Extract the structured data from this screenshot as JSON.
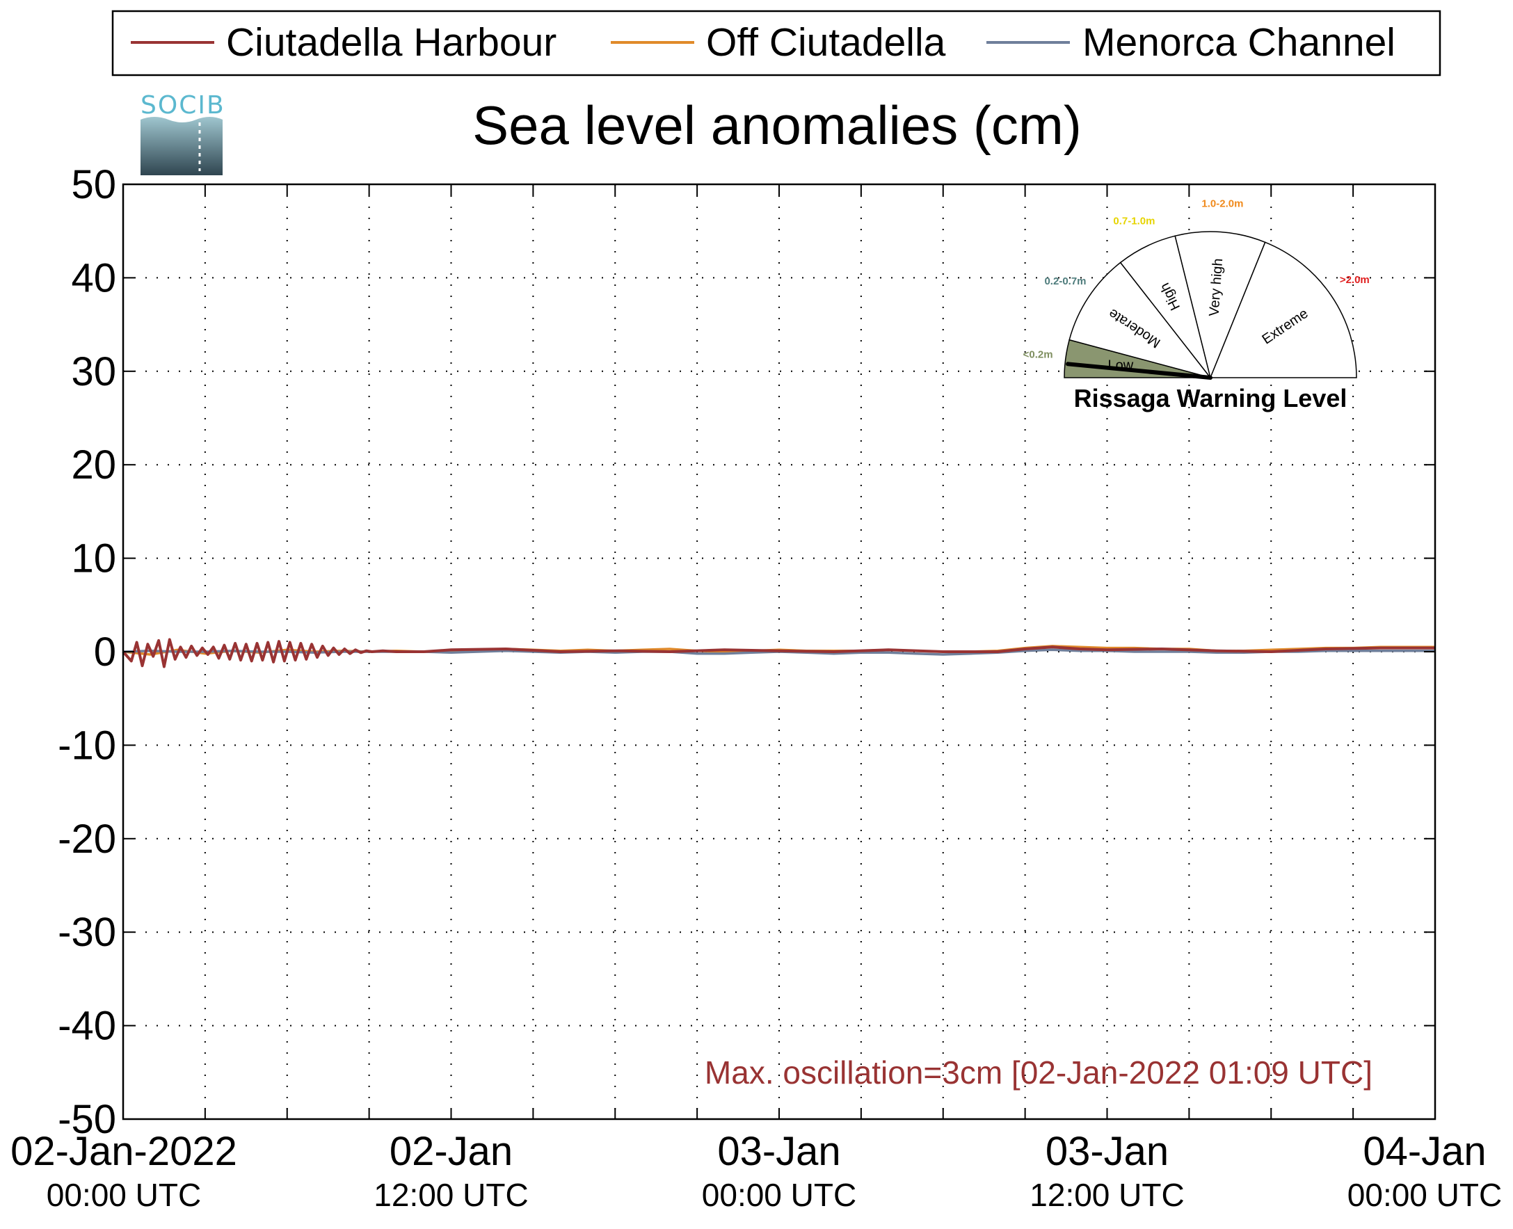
{
  "chart_data": {
    "type": "line",
    "title": "Sea level anomalies (cm)",
    "xlabel": "",
    "ylabel": "",
    "ylim": [
      -50,
      50
    ],
    "yticks": [
      50,
      40,
      30,
      20,
      10,
      0,
      -10,
      -20,
      -30,
      -40,
      -50
    ],
    "yticklabels": [
      "50",
      "40",
      "30",
      "20",
      "10",
      "0",
      "-10",
      "-20",
      "-30",
      "-40",
      "-50"
    ],
    "xlim_hours": [
      0,
      48
    ],
    "xticks": [
      {
        "hours": 0,
        "date": "02-Jan-2022",
        "time": "00:00 UTC"
      },
      {
        "hours": 12,
        "date": "02-Jan",
        "time": "12:00 UTC"
      },
      {
        "hours": 24,
        "date": "03-Jan",
        "time": "00:00 UTC"
      },
      {
        "hours": 36,
        "date": "03-Jan",
        "time": "12:00 UTC"
      },
      {
        "hours": 48,
        "date": "04-Jan",
        "time": "00:00 UTC"
      }
    ],
    "minor_grid_hours": [
      3,
      6,
      9,
      12,
      15,
      18,
      21,
      24,
      27,
      30,
      33,
      36,
      39,
      42,
      45
    ],
    "grid": true,
    "legend_position": "top",
    "series": [
      {
        "name": "Ciutadella Harbour",
        "color": "#993333",
        "x_hours": [
          0,
          0.3,
          0.5,
          0.7,
          0.9,
          1.1,
          1.3,
          1.5,
          1.7,
          1.9,
          2.1,
          2.3,
          2.5,
          2.7,
          2.9,
          3.1,
          3.3,
          3.5,
          3.7,
          3.9,
          4.1,
          4.3,
          4.5,
          4.7,
          4.9,
          5.1,
          5.3,
          5.5,
          5.7,
          5.9,
          6.1,
          6.3,
          6.5,
          6.7,
          6.9,
          7.1,
          7.3,
          7.5,
          7.7,
          7.9,
          8.1,
          8.3,
          8.5,
          8.7,
          8.9,
          9.1,
          9.5,
          10,
          11,
          12,
          14,
          16,
          18,
          20,
          22,
          24,
          26,
          28,
          30,
          32,
          33,
          34,
          35,
          36,
          38,
          40,
          42,
          44,
          46,
          48
        ],
        "values": [
          0,
          -1,
          1,
          -1.5,
          0.8,
          -0.5,
          1.2,
          -1.6,
          1.3,
          -0.8,
          0.5,
          -0.6,
          0.6,
          -0.4,
          0.4,
          -0.3,
          0.5,
          -0.7,
          0.7,
          -0.8,
          0.9,
          -0.9,
          0.8,
          -1.0,
          0.9,
          -0.9,
          1.0,
          -1.1,
          1.1,
          -1.0,
          1.0,
          -0.9,
          0.9,
          -0.8,
          0.8,
          -0.6,
          0.6,
          -0.4,
          0.4,
          -0.3,
          0.3,
          -0.2,
          0.2,
          -0.1,
          0.1,
          0,
          0.1,
          0,
          0,
          0.2,
          0.3,
          0,
          0.1,
          0,
          0.2,
          0.1,
          0,
          0.2,
          0,
          0,
          0.3,
          0.5,
          0.3,
          0.2,
          0.3,
          0.1,
          0,
          0.3,
          0.4,
          0.4
        ]
      },
      {
        "name": "Off Ciutadella",
        "color": "#e08a2a",
        "x_hours": [
          0,
          1,
          2,
          3,
          4,
          5,
          6,
          7,
          8,
          9,
          10,
          11,
          12,
          13,
          14,
          15,
          16,
          17,
          18,
          19,
          20,
          21,
          22,
          23,
          24,
          25,
          26,
          27,
          28,
          29,
          30,
          31,
          32,
          33,
          34,
          35,
          36,
          37,
          38,
          39,
          40,
          41,
          42,
          43,
          44,
          45,
          46,
          47,
          48
        ],
        "values": [
          0,
          -0.3,
          0.2,
          -0.2,
          0.1,
          -0.1,
          0.2,
          0,
          0.1,
          0,
          0.1,
          0,
          0.1,
          0.2,
          0.3,
          0.2,
          0.1,
          0.2,
          0.1,
          0.2,
          0.3,
          0.1,
          0,
          0.1,
          0.2,
          0.1,
          0.1,
          0.1,
          0.2,
          0.1,
          0,
          0,
          0.1,
          0.4,
          0.6,
          0.5,
          0.4,
          0.4,
          0.3,
          0.3,
          0.1,
          0.1,
          0.2,
          0.3,
          0.4,
          0.4,
          0.5,
          0.5,
          0.5
        ]
      },
      {
        "name": "Menorca Channel",
        "color": "#6f7f9b",
        "x_hours": [
          0,
          1,
          2,
          3,
          4,
          5,
          6,
          7,
          8,
          9,
          10,
          11,
          12,
          13,
          14,
          15,
          16,
          17,
          18,
          19,
          20,
          21,
          22,
          23,
          24,
          25,
          26,
          27,
          28,
          29,
          30,
          31,
          32,
          33,
          34,
          35,
          36,
          37,
          38,
          39,
          40,
          41,
          42,
          43,
          44,
          45,
          46,
          47,
          48
        ],
        "values": [
          0,
          0.1,
          0,
          0,
          0.1,
          0,
          0,
          -0.1,
          0,
          0,
          0,
          0,
          -0.1,
          0,
          0.1,
          0,
          -0.1,
          0,
          -0.1,
          0,
          0,
          -0.2,
          -0.2,
          -0.1,
          0,
          -0.1,
          -0.2,
          -0.1,
          -0.1,
          -0.2,
          -0.3,
          -0.2,
          -0.1,
          0.1,
          0.2,
          0.1,
          0.1,
          0,
          0,
          0,
          -0.1,
          -0.1,
          0,
          0,
          0.1,
          0.1,
          0.1,
          0.1,
          0.1
        ]
      }
    ],
    "annotation": {
      "text": "Max. oscillation=3cm [02-Jan-2022 01:09 UTC]",
      "color": "#993333"
    }
  },
  "logo": {
    "text": "SOCIB"
  },
  "gauge": {
    "title": "Rissaga Warning Level",
    "segments": [
      {
        "label": "Low",
        "range": "<0.2m",
        "range_color": "#7f8f60",
        "fill": "#8a9670",
        "active": true
      },
      {
        "label": "Moderate",
        "range": "0.2-0.7m",
        "range_color": "#4e7c7c",
        "fill": "#ffffff",
        "active": false
      },
      {
        "label": "High",
        "range": "0.7-1.0m",
        "range_color": "#e6d400",
        "fill": "#ffffff",
        "active": false
      },
      {
        "label": "Very high",
        "range": "1.0-2.0m",
        "range_color": "#f08a1c",
        "fill": "#ffffff",
        "active": false
      },
      {
        "label": "Extreme",
        "range": ">2.0m",
        "range_color": "#e02020",
        "fill": "#ffffff",
        "active": false
      }
    ]
  }
}
